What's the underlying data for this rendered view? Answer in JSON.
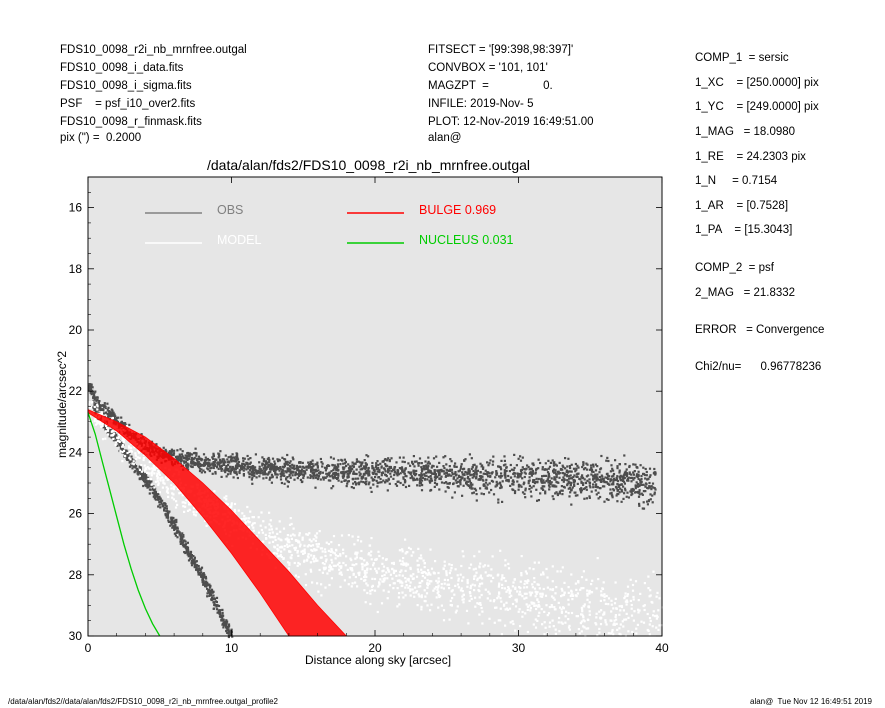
{
  "header": {
    "left": [
      "FDS10_0098_r2i_nb_mrnfree.outgal",
      "FDS10_0098_i_data.fits",
      "FDS10_0098_i_sigma.fits",
      "PSF    = psf_i10_over2.fits",
      "FDS10_0098_r_finmask.fits",
      "pix (\") =  0.2000"
    ],
    "center": [
      "FITSECT = '[99:398,98:397]'",
      "CONVBOX = '101, 101'",
      "MAGZPT  =                 0.",
      "INFILE: 2019-Nov- 5",
      "PLOT: 12-Nov-2019 16:49:51.00",
      "alan@"
    ]
  },
  "params": [
    "COMP_1  = sersic",
    "1_XC    = [250.0000] pix",
    "1_YC    = [249.0000] pix",
    "1_MAG   = 18.0980",
    "1_RE    = 24.2303 pix",
    "1_N     = 0.7154",
    "1_AR    = [0.7528]",
    "1_PA    = [15.3043]",
    "COMP_2  = psf",
    "2_MAG   = 21.8332",
    "ERROR   = Convergence",
    "Chi2/nu=      0.96778236"
  ],
  "footer": {
    "left": "/data/alan/fds2//data/alan/fds2/FDS10_0098_r2i_nb_mrnfree.outgal_profile2",
    "right": "alan@  Tue Nov 12 16:49:51 2019"
  },
  "chart_data": {
    "type": "scatter",
    "title": "/data/alan/fds2/FDS10_0098_r2i_nb_mrnfree.outgal",
    "xlabel": "Distance along sky [arcsec]",
    "ylabel": "magnitude/arcsec^2",
    "xlim": [
      0,
      40
    ],
    "ylim": [
      30,
      15
    ],
    "y_inverted": true,
    "x_ticks": [
      0,
      10,
      20,
      30,
      40
    ],
    "y_ticks": [
      16,
      18,
      20,
      22,
      24,
      26,
      28,
      30
    ],
    "background": "#e6e6e6",
    "legend": [
      {
        "name": "OBS",
        "color": "#808080",
        "label": "OBS"
      },
      {
        "name": "MODEL",
        "color": "#ffffff",
        "label": "MODEL"
      },
      {
        "name": "BULGE",
        "color": "#ff0000",
        "label": "BULGE  0.969"
      },
      {
        "name": "NUCLEUS",
        "color": "#00cc00",
        "label": "NUCLEUS  0.031"
      }
    ],
    "series": [
      {
        "name": "OBS",
        "kind": "points",
        "color": "#4d4d4d",
        "x": [
          0,
          0.5,
          1,
          1.5,
          2,
          3,
          4,
          5,
          6,
          7,
          8,
          10,
          12,
          15,
          20,
          25,
          30,
          35,
          39.5
        ],
        "y": [
          21.8,
          22.3,
          22.5,
          22.7,
          23.0,
          23.4,
          23.8,
          24.0,
          24.1,
          24.2,
          24.3,
          24.4,
          24.5,
          24.6,
          24.6,
          24.7,
          24.8,
          24.9,
          25.0
        ]
      },
      {
        "name": "OBS",
        "kind": "points",
        "color": "#4d4d4d",
        "x": [
          0.3,
          1,
          2,
          3,
          4,
          5,
          6,
          7,
          8,
          8.5,
          9,
          9.5,
          10
        ],
        "y": [
          22.5,
          23.0,
          23.6,
          24.3,
          24.9,
          25.6,
          26.4,
          27.3,
          28.1,
          28.6,
          29.1,
          29.6,
          30.0
        ]
      },
      {
        "name": "MODEL",
        "kind": "points",
        "color": "#ffffff",
        "x": [
          0,
          2,
          5,
          10,
          15,
          20,
          25,
          30,
          35,
          40
        ],
        "y": [
          22.6,
          23.4,
          24.8,
          26.2,
          27.3,
          27.9,
          28.3,
          28.7,
          29.0,
          29.3
        ]
      },
      {
        "name": "BULGE",
        "kind": "band",
        "color": "#ff0000",
        "x": [
          0,
          2,
          4,
          6,
          8,
          10,
          12,
          14,
          16,
          18
        ],
        "y_upper": [
          22.6,
          23.0,
          23.5,
          24.2,
          25.0,
          25.9,
          26.9,
          27.9,
          29.0,
          30.0
        ],
        "y_lower": [
          22.7,
          23.3,
          24.1,
          25.0,
          26.1,
          27.3,
          28.6,
          30.0,
          30.0,
          30.0
        ]
      },
      {
        "name": "NUCLEUS",
        "kind": "line",
        "color": "#00cc00",
        "x": [
          0,
          0.5,
          1,
          1.5,
          2,
          2.5,
          3,
          3.5,
          4,
          4.5,
          5
        ],
        "y": [
          22.7,
          23.4,
          24.3,
          25.2,
          26.1,
          27.0,
          27.8,
          28.5,
          29.1,
          29.6,
          30.0
        ]
      }
    ]
  }
}
